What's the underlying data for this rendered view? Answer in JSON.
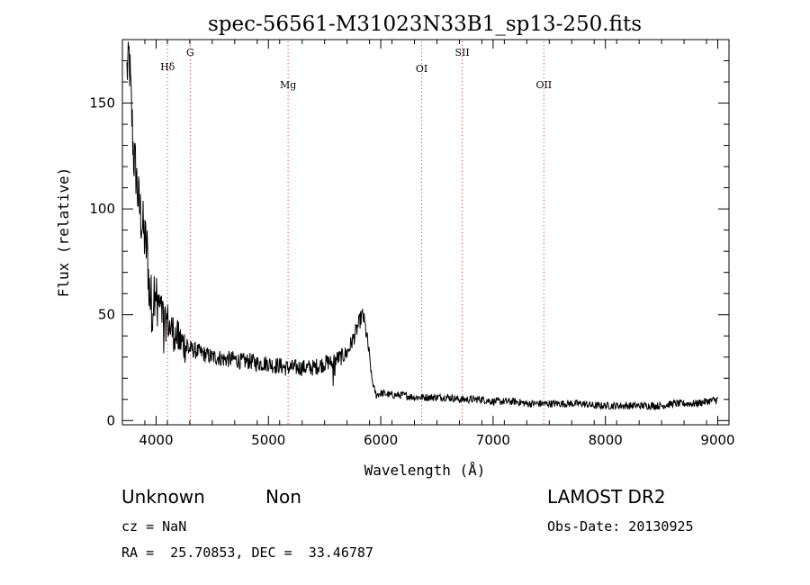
{
  "chart_data": {
    "type": "line",
    "title": "spec-56561-M31023N33B1_sp13-250.fits",
    "xlabel": "Wavelength (Å)",
    "ylabel": "Flux (relative)",
    "xlim": [
      3700,
      9100
    ],
    "ylim": [
      -2,
      180
    ],
    "xticks": [
      4000,
      5000,
      6000,
      7000,
      8000,
      9000
    ],
    "yticks": [
      0,
      50,
      100,
      150
    ],
    "grid": false,
    "series": [
      {
        "x": [
          3740,
          3760,
          3780,
          3800,
          3820,
          3840,
          3860,
          3880,
          3900,
          3920,
          3940,
          3960,
          3980,
          4000,
          4020,
          4040,
          4060,
          4080,
          4100,
          4120,
          4140,
          4160,
          4180,
          4200,
          4250,
          4300,
          4350,
          4400,
          4450,
          4500,
          4550,
          4600,
          4650,
          4700,
          4750,
          4800,
          4850,
          4900,
          4950,
          5000,
          5050,
          5100,
          5150,
          5200,
          5250,
          5300,
          5350,
          5400,
          5450,
          5500,
          5550,
          5600,
          5650,
          5700,
          5750,
          5780,
          5800,
          5820,
          5840,
          5860,
          5880,
          5900,
          5920,
          5940,
          5960,
          6000,
          6100,
          6200,
          6300,
          6400,
          6500,
          6600,
          6700,
          6800,
          6900,
          7000,
          7100,
          7200,
          7300,
          7400,
          7500,
          7600,
          7700,
          7800,
          7900,
          8000,
          8100,
          8200,
          8300,
          8400,
          8500,
          8600,
          8700,
          8800,
          8900,
          9000
        ],
        "y": [
          165,
          172,
          148,
          125,
          118,
          105,
          98,
          92,
          85,
          80,
          62,
          55,
          58,
          60,
          56,
          52,
          50,
          45,
          48,
          44,
          43,
          41,
          40,
          38,
          36,
          34,
          33,
          32,
          31,
          30,
          30,
          29,
          29,
          29,
          28,
          28,
          28,
          27,
          27,
          27,
          26,
          26,
          25,
          25,
          25,
          25,
          25,
          25,
          26,
          27,
          28,
          29,
          30,
          32,
          38,
          42,
          45,
          48,
          50,
          45,
          38,
          30,
          20,
          15,
          12,
          13,
          12,
          12,
          11,
          11,
          11,
          11,
          10,
          10,
          10,
          9,
          9,
          9,
          8,
          8,
          8,
          8,
          8,
          8,
          7,
          7,
          7,
          7,
          7,
          7,
          7,
          8,
          8,
          8,
          9,
          10
        ]
      }
    ],
    "lines": [
      {
        "label": "Hδ",
        "x": 4102
      },
      {
        "label": "G",
        "x": 4304
      },
      {
        "label": "Mg",
        "x": 5175
      },
      {
        "label": "OI",
        "x": 6364
      },
      {
        "label": "SII",
        "x": 6725
      },
      {
        "label": "OII",
        "x": 7452
      }
    ]
  },
  "info": {
    "class": "Unknown",
    "subclass": "Non",
    "survey": "LAMOST DR2",
    "cz": "cz = NaN",
    "obs_date": "Obs-Date: 20130925",
    "coords": "RA =  25.70853, DEC =  33.46787"
  }
}
